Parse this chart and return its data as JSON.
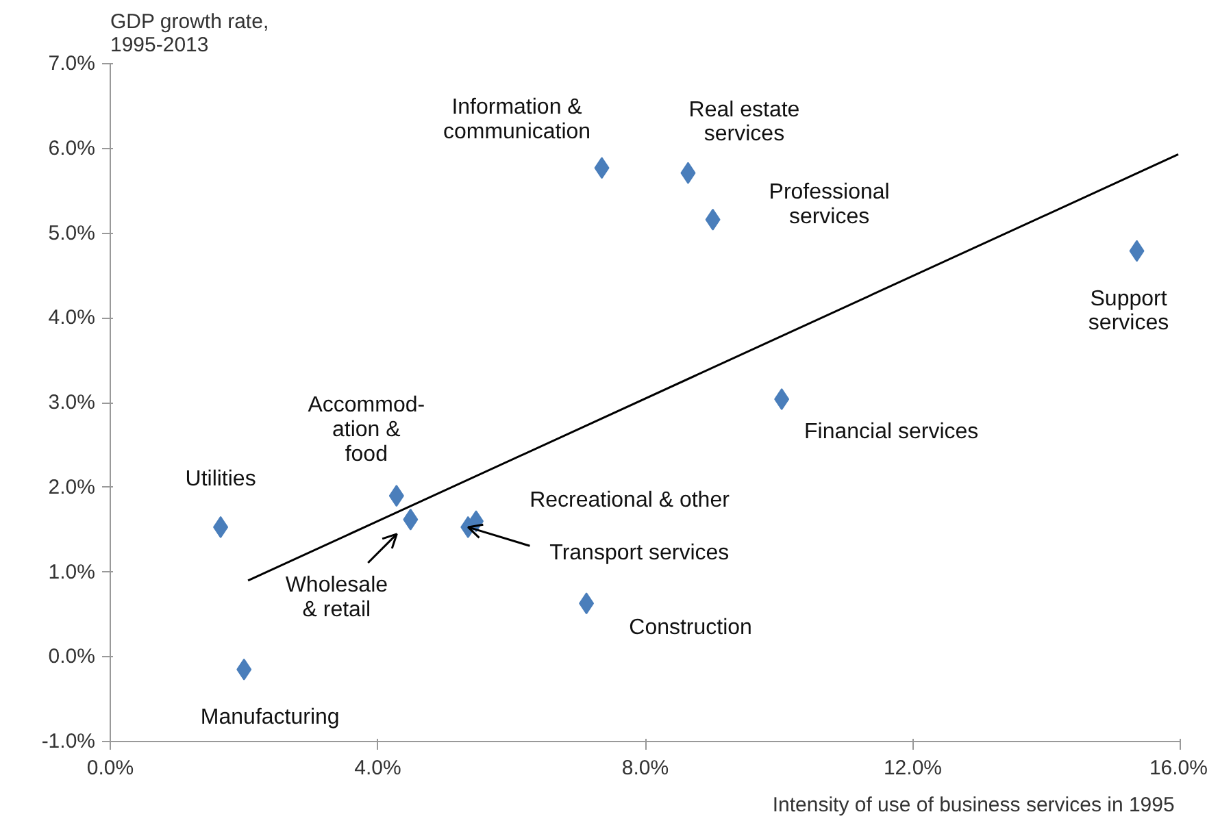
{
  "chart_data": {
    "type": "scatter",
    "ylabel": "GDP growth rate,\n1995-2013",
    "xlabel": "Intensity of use of business services  in 1995",
    "xlim": [
      0,
      16
    ],
    "ylim": [
      -1,
      7
    ],
    "xticks": [
      {
        "value": 0,
        "label": "0.0%"
      },
      {
        "value": 4,
        "label": "4.0%"
      },
      {
        "value": 8,
        "label": "8.0%"
      },
      {
        "value": 12,
        "label": "12.0%"
      },
      {
        "value": 16,
        "label": "16.0%"
      }
    ],
    "yticks": [
      {
        "value": -1,
        "label": "-1.0%"
      },
      {
        "value": 0,
        "label": "0.0%"
      },
      {
        "value": 1,
        "label": "1.0%"
      },
      {
        "value": 2,
        "label": "2.0%"
      },
      {
        "value": 3,
        "label": "3.0%"
      },
      {
        "value": 4,
        "label": "4.0%"
      },
      {
        "value": 5,
        "label": "5.0%"
      },
      {
        "value": 6,
        "label": "6.0%"
      },
      {
        "value": 7,
        "label": "7.0%"
      }
    ],
    "grid": false,
    "series": [
      {
        "marker": "diamond",
        "color": "#4a7ebb",
        "x": [
          1.65,
          2.0,
          4.28,
          4.49,
          5.35,
          5.47,
          7.12,
          7.35,
          8.64,
          9.01,
          10.04,
          15.35
        ],
        "values": [
          1.53,
          -0.15,
          1.9,
          1.62,
          1.53,
          1.6,
          0.63,
          5.77,
          5.71,
          5.16,
          3.04,
          4.79
        ]
      },
      {
        "type": "line",
        "marker": "none",
        "color": "#000000",
        "x": [
          2.06,
          15.97
        ],
        "values": [
          0.9,
          5.93
        ]
      }
    ],
    "annotations": [
      {
        "text": "Utilities",
        "x": 1.65,
        "y": 1.53
      },
      {
        "text": "Manufacturing",
        "x": 2.0,
        "y": -0.15
      },
      {
        "text": "Accommod-\nation &\nfood",
        "x": 4.28,
        "y": 1.9
      },
      {
        "text": "Wholesale\n& retail",
        "x": 4.49,
        "y": 1.62
      },
      {
        "text": "Transport services",
        "x": 5.35,
        "y": 1.53
      },
      {
        "text": "Recreational & other",
        "x": 5.47,
        "y": 1.6
      },
      {
        "text": "Construction",
        "x": 7.12,
        "y": 0.63
      },
      {
        "text": "Information &\ncommunication",
        "x": 7.35,
        "y": 5.77
      },
      {
        "text": "Real estate\nservices",
        "x": 8.64,
        "y": 5.71
      },
      {
        "text": "Professional\nservices",
        "x": 9.01,
        "y": 5.16
      },
      {
        "text": "Financial services",
        "x": 10.04,
        "y": 3.04
      },
      {
        "text": "Support\nservices",
        "x": 15.35,
        "y": 4.79
      }
    ]
  }
}
